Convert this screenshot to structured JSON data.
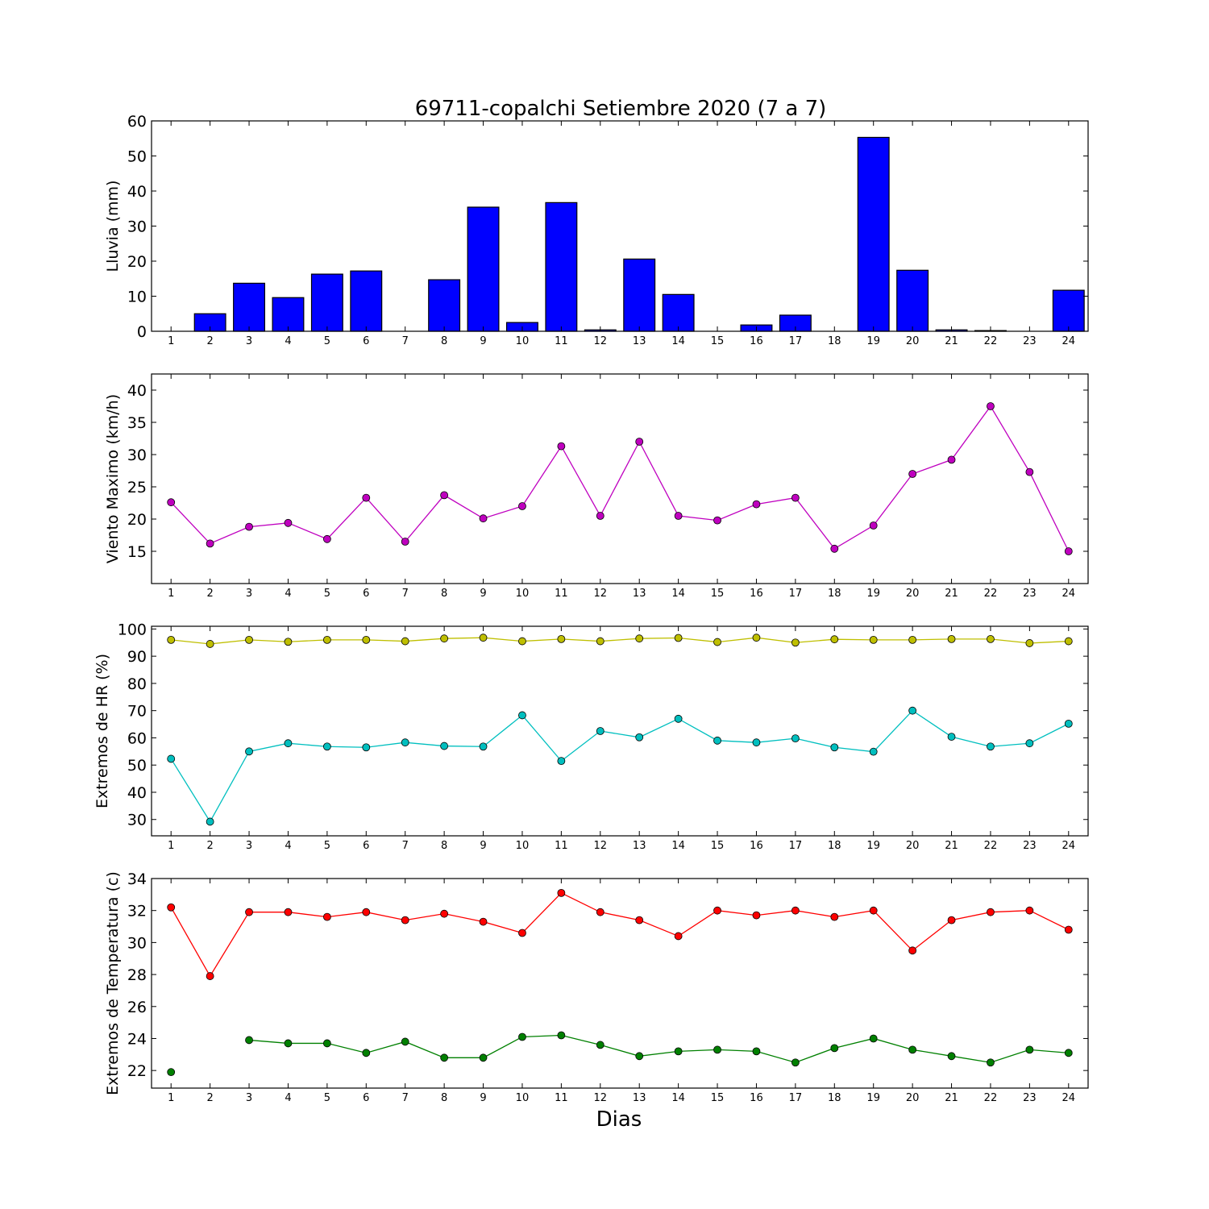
{
  "figure": {
    "title": "69711-copalchi Setiembre 2020  (7 a 7)",
    "xlabel": "Dias"
  },
  "chart_data": [
    {
      "type": "bar",
      "title": "69711-copalchi Setiembre 2020  (7 a 7)",
      "ylabel": "Lluvia (mm)",
      "xlabel": "",
      "x": [
        1,
        2,
        3,
        4,
        5,
        6,
        7,
        8,
        9,
        10,
        11,
        12,
        13,
        14,
        15,
        16,
        17,
        18,
        19,
        20,
        21,
        22,
        23,
        24
      ],
      "ylim": [
        0,
        60
      ],
      "yticks": [
        0,
        10,
        20,
        30,
        40,
        50,
        60
      ],
      "grid": false,
      "series": [
        {
          "color": "#0000ff",
          "values": [
            0,
            5.0,
            13.7,
            9.6,
            16.3,
            17.2,
            0,
            14.7,
            35.4,
            2.5,
            36.7,
            0.4,
            20.6,
            10.5,
            0,
            1.8,
            4.6,
            0,
            55.3,
            17.4,
            0.4,
            0.2,
            0,
            11.7
          ]
        }
      ]
    },
    {
      "type": "line",
      "ylabel": "Viento Maximo (km/h)",
      "xlabel": "",
      "x": [
        1,
        2,
        3,
        4,
        5,
        6,
        7,
        8,
        9,
        10,
        11,
        12,
        13,
        14,
        15,
        16,
        17,
        18,
        19,
        20,
        21,
        22,
        23,
        24
      ],
      "ylim": [
        10,
        42.5
      ],
      "yticks": [
        15,
        20,
        25,
        30,
        35,
        40
      ],
      "grid": false,
      "series": [
        {
          "color": "#bf00bf",
          "values": [
            22.6,
            16.2,
            18.8,
            19.4,
            16.9,
            23.3,
            16.5,
            23.7,
            20.1,
            22.0,
            31.3,
            20.5,
            32.0,
            20.5,
            19.8,
            22.3,
            23.3,
            15.4,
            19.0,
            27.0,
            29.2,
            37.5,
            27.3,
            15.0
          ]
        }
      ]
    },
    {
      "type": "line",
      "ylabel": "Extremos de HR (%)",
      "xlabel": "",
      "x": [
        1,
        2,
        3,
        4,
        5,
        6,
        7,
        8,
        9,
        10,
        11,
        12,
        13,
        14,
        15,
        16,
        17,
        18,
        19,
        20,
        21,
        22,
        23,
        24
      ],
      "ylim": [
        24,
        101
      ],
      "yticks": [
        30,
        40,
        50,
        60,
        70,
        80,
        90,
        100
      ],
      "grid": false,
      "series": [
        {
          "color": "#bfbf00",
          "values": [
            96.0,
            94.5,
            96.0,
            95.3,
            96.0,
            96.0,
            95.5,
            96.5,
            96.8,
            95.5,
            96.3,
            95.5,
            96.5,
            96.7,
            95.2,
            96.8,
            95.0,
            96.2,
            96.0,
            96.0,
            96.3,
            96.3,
            94.8,
            95.5
          ]
        },
        {
          "color": "#00bfbf",
          "values": [
            52.3,
            29.2,
            55.0,
            58.0,
            56.8,
            56.5,
            58.3,
            57.0,
            56.8,
            68.3,
            51.5,
            62.5,
            60.2,
            67.0,
            59.0,
            58.3,
            59.8,
            56.5,
            54.9,
            70.0,
            60.4,
            56.8,
            58.0,
            65.2
          ]
        }
      ]
    },
    {
      "type": "line",
      "ylabel": "Extremos de Temperatura (c)",
      "xlabel": "Dias",
      "x": [
        1,
        2,
        3,
        4,
        5,
        6,
        7,
        8,
        9,
        10,
        11,
        12,
        13,
        14,
        15,
        16,
        17,
        18,
        19,
        20,
        21,
        22,
        23,
        24
      ],
      "ylim": [
        20.9,
        34
      ],
      "yticks": [
        22,
        24,
        26,
        28,
        30,
        32,
        34
      ],
      "grid": false,
      "series": [
        {
          "color": "#ff0000",
          "values": [
            32.2,
            27.9,
            31.9,
            31.9,
            31.6,
            31.9,
            31.4,
            31.8,
            31.3,
            30.6,
            33.1,
            31.9,
            31.4,
            30.4,
            32.0,
            31.7,
            32.0,
            31.6,
            32.0,
            29.5,
            31.4,
            31.9,
            32.0,
            30.8
          ]
        },
        {
          "color": "#008000",
          "values": [
            21.9,
            null,
            23.9,
            23.7,
            23.7,
            23.1,
            23.8,
            22.8,
            22.8,
            24.1,
            24.2,
            23.6,
            22.9,
            23.2,
            23.3,
            23.2,
            22.5,
            23.4,
            24.0,
            23.3,
            22.9,
            22.5,
            23.3,
            23.1
          ]
        }
      ]
    }
  ]
}
